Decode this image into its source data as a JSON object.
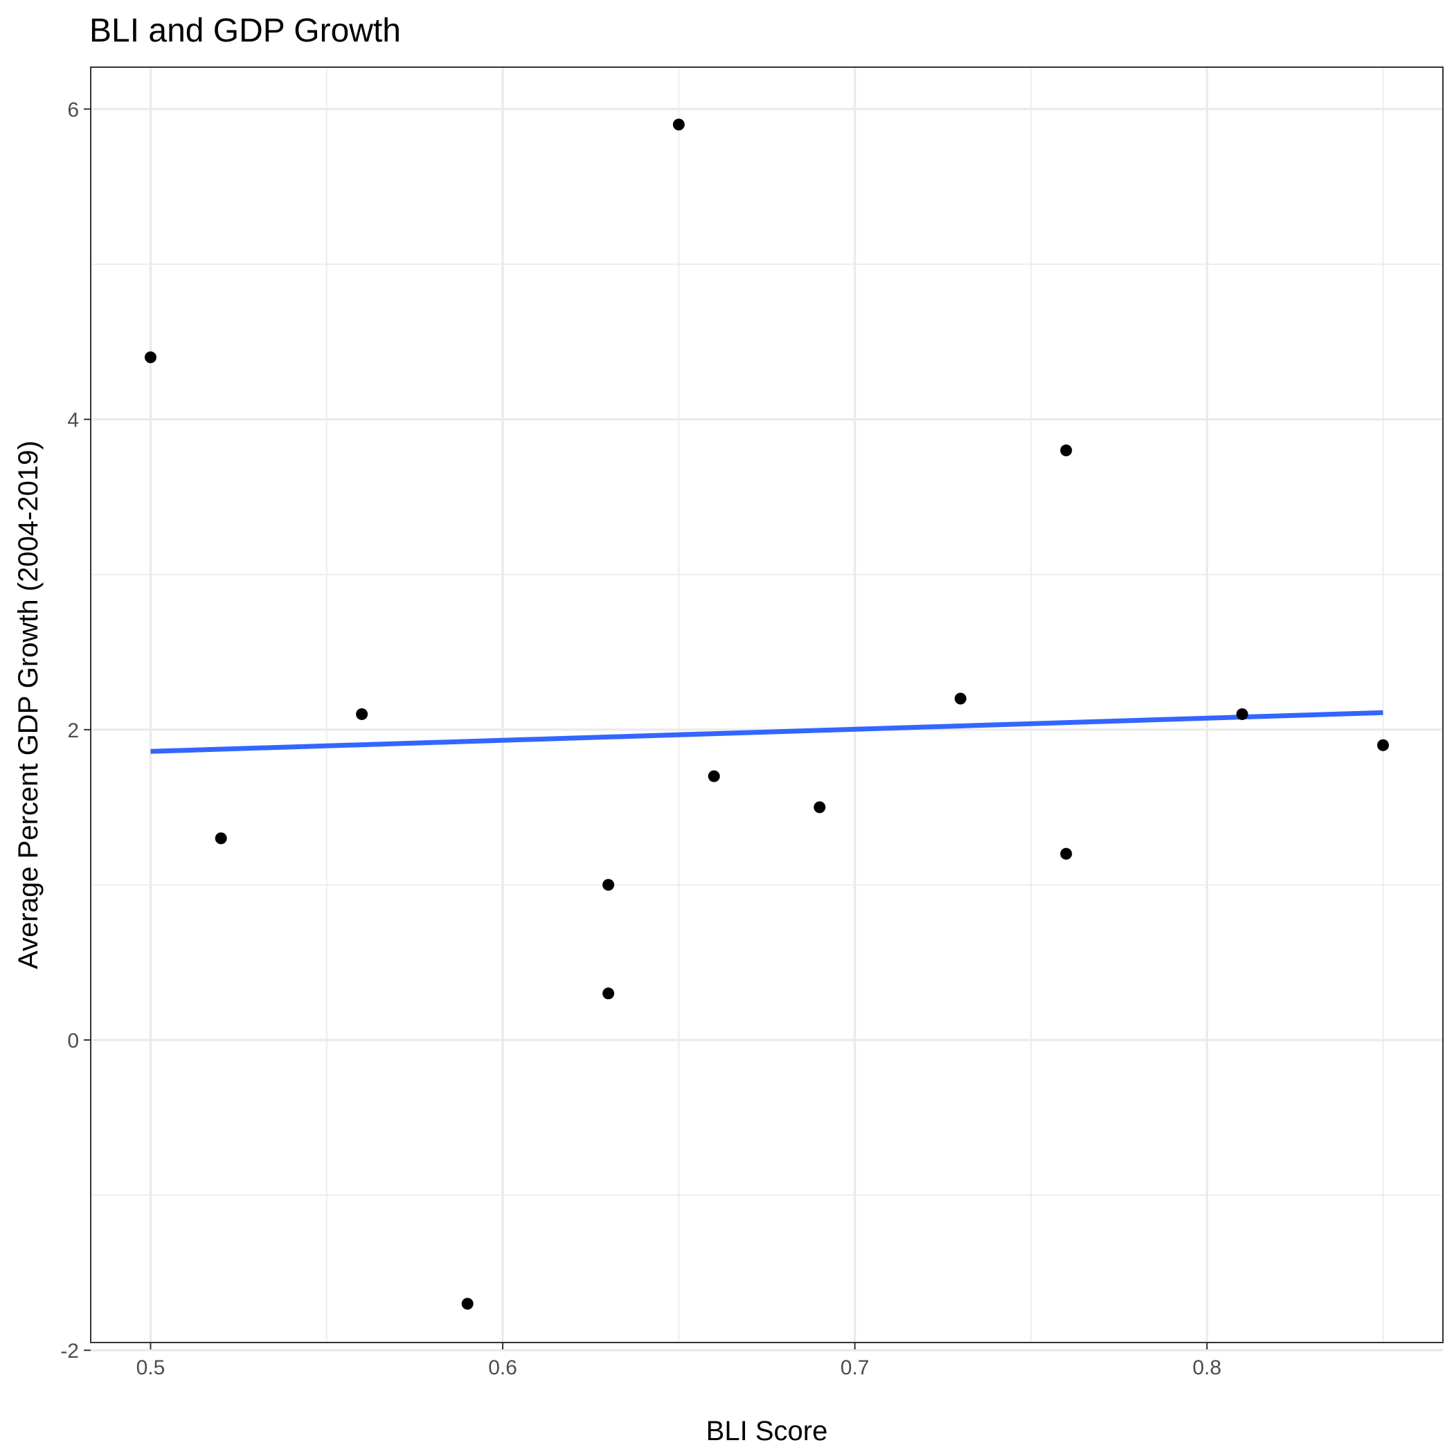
{
  "chart_data": {
    "type": "scatter",
    "title": "BLI and GDP Growth",
    "xlabel": "BLI Score",
    "ylabel": "Average Percent GDP Growth (2004-2019)",
    "xlim": [
      0.483,
      0.867
    ],
    "ylim": [
      -1.95,
      6.27
    ],
    "x_ticks": [
      0.5,
      0.6,
      0.7,
      0.8
    ],
    "x_tick_labels": [
      "0.5",
      "0.6",
      "0.7",
      "0.8"
    ],
    "x_minor_ticks": [
      0.55,
      0.65,
      0.75,
      0.85
    ],
    "y_ticks": [
      -2,
      0,
      2,
      4,
      6
    ],
    "y_tick_labels": [
      "-2",
      "0",
      "2",
      "4",
      "6"
    ],
    "y_minor_ticks": [
      -1,
      1,
      3,
      5
    ],
    "grid": true,
    "legend": "none",
    "points": [
      {
        "x": 0.5,
        "y": 4.4
      },
      {
        "x": 0.52,
        "y": 1.3
      },
      {
        "x": 0.56,
        "y": 2.1
      },
      {
        "x": 0.59,
        "y": -1.7
      },
      {
        "x": 0.63,
        "y": 1.0
      },
      {
        "x": 0.63,
        "y": 0.3
      },
      {
        "x": 0.65,
        "y": 5.9
      },
      {
        "x": 0.66,
        "y": 1.7
      },
      {
        "x": 0.69,
        "y": 1.5
      },
      {
        "x": 0.73,
        "y": 2.2
      },
      {
        "x": 0.76,
        "y": 3.8
      },
      {
        "x": 0.76,
        "y": 1.2
      },
      {
        "x": 0.81,
        "y": 2.1
      },
      {
        "x": 0.85,
        "y": 1.9
      }
    ],
    "trend_line": {
      "x": [
        0.5,
        0.85
      ],
      "y": [
        1.86,
        2.11
      ]
    },
    "colors": {
      "points": "#000000",
      "trend_line": "#3366FF",
      "grid": "#EBEBEB",
      "border": "#333333"
    }
  }
}
